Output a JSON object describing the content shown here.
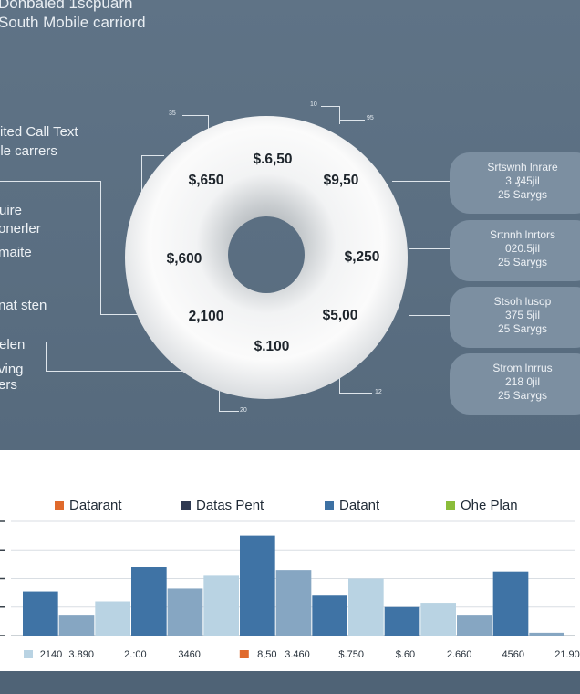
{
  "header": {
    "title_line1": "Donbaled 1scpuarn",
    "title_line2": "South Mobile carriord"
  },
  "left_labels": [
    "ited Call Text",
    "ile carrers",
    "uire",
    "onerler",
    "maite",
    "nat sten",
    "elen",
    "ving",
    "ers"
  ],
  "callout_numbers": [
    "35",
    "10",
    "95",
    "20",
    "12"
  ],
  "pills": [
    {
      "title": "Srtswnh lnrare",
      "value": "3 ₰45jil",
      "sub": "25 Sarygs"
    },
    {
      "title": "Srtnnh lnrtors",
      "value": "020.5jil",
      "sub": "25 Sarygs"
    },
    {
      "title": "Stsoh lusop",
      "value": "375 5jil",
      "sub": "25 Sarygs"
    },
    {
      "title": "Strom lnrrus",
      "value": "218 0jil",
      "sub": "25 Sarygs"
    }
  ],
  "colors": {
    "series_1": "#e06a2c",
    "series_2": "#2f3a52",
    "series_3": "#3d71a3",
    "series_4": "#8bbd3a",
    "bar_dark": "#3f73a5",
    "bar_mid": "#86a6c2",
    "bar_light": "#b9d3e3"
  },
  "chart_data": [
    {
      "type": "pie",
      "style": "donut",
      "labels": [
        "$.6,50",
        "$9,50",
        "$,250",
        "$5,00",
        "$.100",
        "2,100",
        "$,600",
        "$,650"
      ]
    },
    {
      "type": "bar",
      "legend": [
        "Datarant",
        "Datas Pent",
        "Datant",
        "Ohe Plan"
      ],
      "legend_placement": "top",
      "grid": true,
      "ylim": [
        0,
        4
      ],
      "values": [
        1.55,
        0.7,
        1.2,
        2.4,
        1.65,
        2.1,
        3.5,
        2.3,
        1.4,
        2.0,
        1.0,
        1.15,
        0.7,
        2.25,
        0.1
      ],
      "shades": [
        "dark",
        "mid",
        "light",
        "dark",
        "mid",
        "light",
        "dark",
        "mid",
        "dark",
        "light",
        "dark",
        "light",
        "mid",
        "dark",
        "mid"
      ],
      "x_labels": [
        "2140",
        "3.890",
        "2.:00",
        "3460",
        "8,50",
        "3.460",
        "$.750",
        "$.60",
        "2.660",
        "4560",
        "21.90"
      ],
      "x_label_markers": [
        "light",
        "",
        "",
        "",
        "orange",
        "",
        "",
        "",
        "",
        "",
        ""
      ]
    }
  ]
}
